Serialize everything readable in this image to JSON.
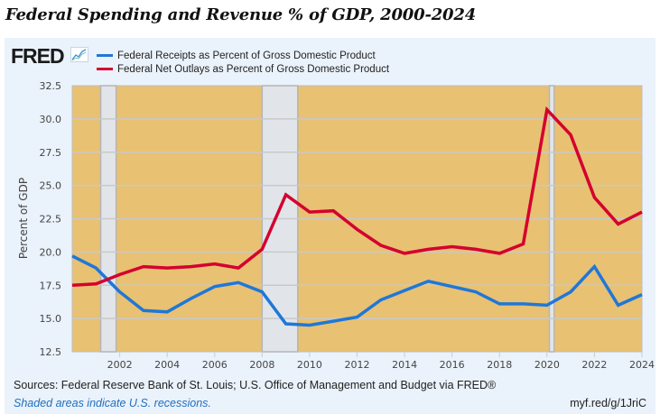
{
  "page_title": "Federal Spending and Revenue % of GDP, 2000-2024",
  "logo": {
    "text": "FRED",
    "icon": "line-chart-icon"
  },
  "footer": {
    "sources": "Sources: Federal Reserve Bank of St. Louis; U.S. Office of Management and Budget via FRED®",
    "shaded_note": "Shaded areas indicate U.S. recessions.",
    "short_url": "myf.red/g/1JriC"
  },
  "colors": {
    "receipts": "#1f77d8",
    "outlays": "#d4002f",
    "plot_bg": "#e8c172",
    "recession": "#e1e5ea",
    "grid": "#c9c9c9",
    "panel_bg": "#eaf2fb"
  },
  "chart_data": {
    "type": "line",
    "title": "Federal Spending and Revenue % of GDP, 2000-2024",
    "xlabel": "",
    "ylabel": "Percent of GDP",
    "x": [
      2000,
      2001,
      2002,
      2003,
      2004,
      2005,
      2006,
      2007,
      2008,
      2009,
      2010,
      2011,
      2012,
      2013,
      2014,
      2015,
      2016,
      2017,
      2018,
      2019,
      2020,
      2021,
      2022,
      2023,
      2024
    ],
    "xlim": [
      2000,
      2024
    ],
    "ylim": [
      12.5,
      32.5
    ],
    "x_ticks": [
      "2002",
      "2004",
      "2006",
      "2008",
      "2010",
      "2012",
      "2014",
      "2016",
      "2018",
      "2020",
      "2022",
      "2024"
    ],
    "x_tick_values": [
      2002,
      2004,
      2006,
      2008,
      2010,
      2012,
      2014,
      2016,
      2018,
      2020,
      2022,
      2024
    ],
    "y_ticks": [
      "12.5",
      "15.0",
      "17.5",
      "20.0",
      "22.5",
      "25.0",
      "27.5",
      "30.0",
      "32.5"
    ],
    "y_tick_values": [
      12.5,
      15.0,
      17.5,
      20.0,
      22.5,
      25.0,
      27.5,
      30.0,
      32.5
    ],
    "grid": true,
    "legend_position": "top-left",
    "series": [
      {
        "name": "Federal Receipts as Percent of Gross Domestic Product",
        "color": "#1f77d8",
        "values": [
          19.7,
          18.8,
          17.0,
          15.6,
          15.5,
          16.5,
          17.4,
          17.7,
          17.0,
          14.6,
          14.5,
          14.8,
          15.1,
          16.4,
          17.1,
          17.8,
          17.4,
          17.0,
          16.1,
          16.1,
          16.0,
          17.0,
          18.9,
          16.0,
          16.8
        ]
      },
      {
        "name": "Federal Net Outlays as Percent of Gross Domestic Product",
        "color": "#d4002f",
        "values": [
          17.5,
          17.6,
          18.3,
          18.9,
          18.8,
          18.9,
          19.1,
          18.8,
          20.2,
          24.3,
          23.0,
          23.1,
          21.7,
          20.5,
          19.9,
          20.2,
          20.4,
          20.2,
          19.9,
          20.6,
          30.7,
          28.8,
          24.1,
          22.1,
          23.0
        ]
      }
    ],
    "recessions": [
      {
        "start": 2001.2,
        "end": 2001.85
      },
      {
        "start": 2008.0,
        "end": 2009.5
      },
      {
        "start": 2020.1,
        "end": 2020.3
      }
    ]
  }
}
